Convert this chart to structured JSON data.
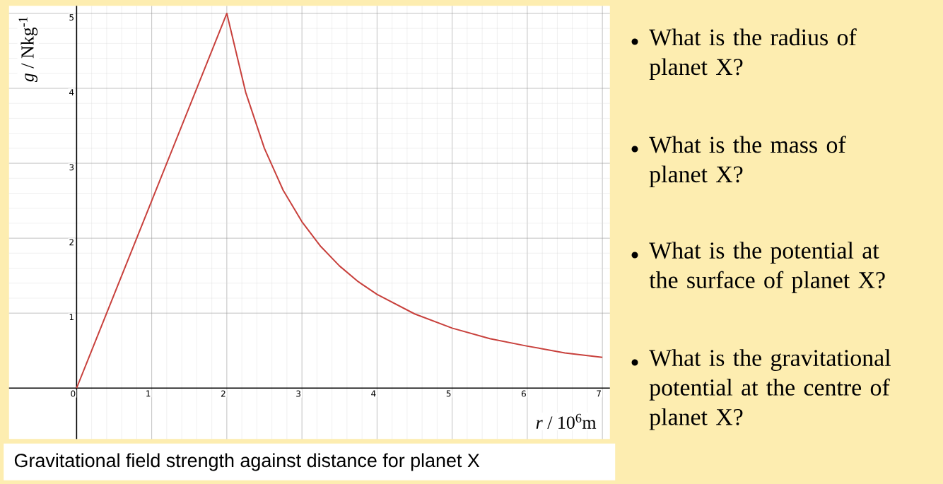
{
  "chart_data": {
    "type": "line",
    "title": "Gravitational field strength against distance for planet X",
    "xlabel": "*r* / 10$^{6}$m",
    "ylabel": "*g* / Nkg$^{-1}$",
    "x": [
      0,
      1,
      2,
      2.25,
      2.5,
      2.75,
      3,
      3.25,
      3.5,
      3.75,
      4,
      4.5,
      5,
      5.5,
      6,
      6.5,
      7
    ],
    "values": [
      0,
      2.5,
      5,
      3.95,
      3.2,
      2.64,
      2.22,
      1.89,
      1.63,
      1.42,
      1.25,
      0.99,
      0.8,
      0.66,
      0.56,
      0.47,
      0.41
    ],
    "color": "#c8403c",
    "xlim": [
      -0.9,
      7.1
    ],
    "ylim": [
      -0.68,
      5.1
    ],
    "xticks": [
      0,
      1,
      2,
      3,
      4,
      5,
      6,
      7
    ],
    "yticks": [
      1,
      2,
      3,
      4,
      5
    ],
    "grid": true,
    "annotations": [
      "What is the radius of planet X?",
      "What is the mass of planet X?",
      "What is the potential at the surface of planet X?",
      "What is the gravitational potential at the centre of planet X?"
    ]
  }
}
